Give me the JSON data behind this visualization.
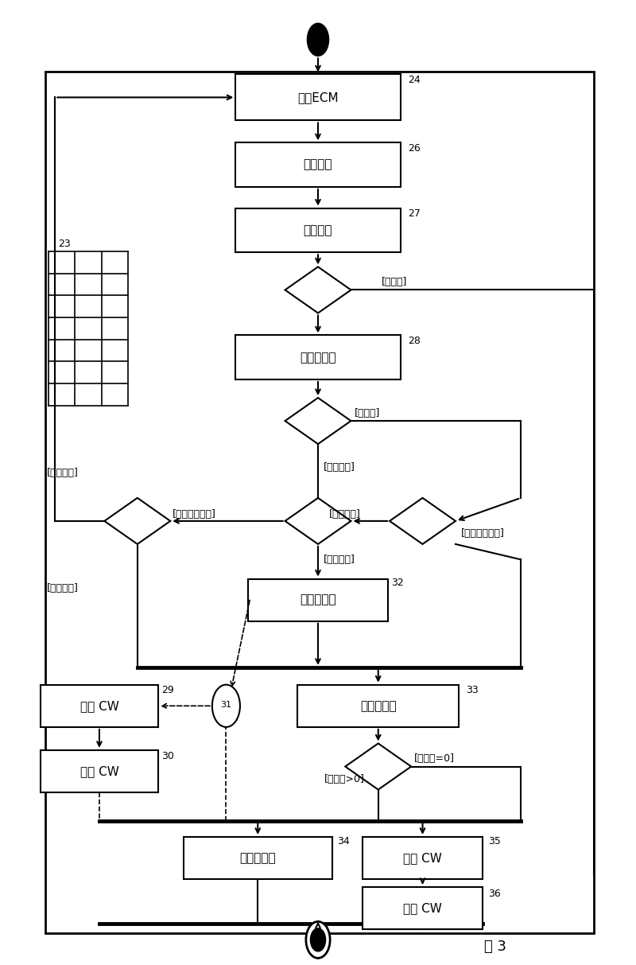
{
  "bg_color": "#ffffff",
  "line_color": "#000000",
  "font_size_box": 11,
  "font_size_label": 9,
  "title": "图 3",
  "ecm_text": "接收ECM",
  "product_text": "识别产品",
  "check_right_text": "检验权利",
  "check_valid_text": "检验有效性",
  "set_counter_text": "设置计数器",
  "check_counter_text": "检验计数器",
  "decrypt_cw_text": "解密 CW",
  "return_cw_text": "返回 CW",
  "decrement_text": "递减计数器",
  "label_buzaizai": "[不存在]",
  "label_kuanxianqi": "[宽限期]",
  "label_zhengchangmoshi": "[正常模式]",
  "label_chanpindaoqi": "[产品到期]",
  "label_chanpinyouxiao": "[产品有效]",
  "label_bingfei_qibud": "[并非全部到期]",
  "label_quanbu_youxiao": "[全部有效]",
  "label_quanbu_daoqi": "[全部到期]",
  "label_bingfei_youxiao": "[并非全部有效]",
  "label_jishuqi_gt0": "[计数器>0]",
  "label_jishuqi_eq0": "[计数器=0]"
}
